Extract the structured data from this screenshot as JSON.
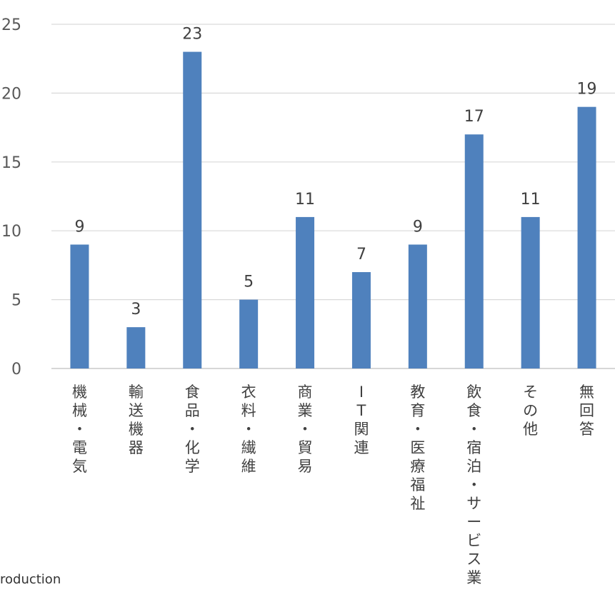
{
  "chart_data": {
    "type": "bar",
    "categories": [
      "機械・電気",
      "輸送機器",
      "食品・化学",
      "衣料・繊維",
      "商業・貿易",
      "IT関連",
      "教育・医療福祉",
      "飲食・宿泊・サービス業",
      "その他",
      "無回答"
    ],
    "values": [
      9,
      3,
      23,
      5,
      11,
      7,
      9,
      17,
      11,
      19
    ],
    "ylim": [
      0,
      25
    ],
    "yticks": [
      0,
      5,
      10,
      15,
      20,
      25
    ],
    "grid": true,
    "bar_color": "#4F81BD",
    "data_labels": true
  },
  "footnote": "roduction"
}
